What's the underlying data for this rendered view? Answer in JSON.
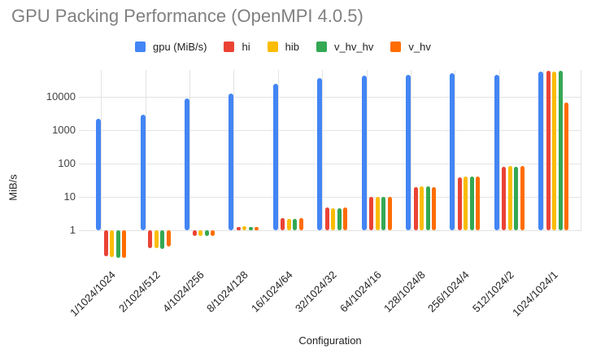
{
  "title": "GPU Packing Performance (OpenMPI 4.0.5)",
  "chart_data": {
    "type": "bar",
    "title": "GPU Packing Performance (OpenMPI 4.0.5)",
    "xlabel": "Configuration",
    "ylabel": "MiB/s",
    "scale": "log",
    "grid": true,
    "legend_position": "top",
    "y_ticks": [
      1,
      10,
      100,
      1000,
      10000
    ],
    "ylim": [
      0.1,
      61600
    ],
    "categories": [
      "1/1024/1024",
      "2/1024/512",
      "4/1024/256",
      "8/1024/128",
      "16/1024/64",
      "32/1024/32",
      "64/1024/16",
      "128/1024/8",
      "256/1024/4",
      "512/1024/2",
      "1024/1024/1"
    ],
    "series": [
      {
        "name": "gpu (MiB/s)",
        "color": "#4285F4",
        "values": [
          2200,
          2800,
          8500,
          12500,
          24000,
          35000,
          42000,
          45000,
          49000,
          45000,
          54000
        ]
      },
      {
        "name": "hi",
        "color": "#EA4335",
        "values": [
          0.17,
          0.3,
          0.68,
          1.3,
          2.3,
          4.8,
          10,
          20,
          38,
          78,
          58000
        ]
      },
      {
        "name": "hib",
        "color": "#FBBC04",
        "values": [
          0.16,
          0.29,
          0.67,
          1.35,
          2.2,
          4.7,
          10,
          21,
          41,
          84,
          55000
        ]
      },
      {
        "name": "v_hv_hv",
        "color": "#34A853",
        "values": [
          0.15,
          0.28,
          0.67,
          1.3,
          2.2,
          4.7,
          10,
          21,
          41,
          79,
          58000
        ]
      },
      {
        "name": "v_hv",
        "color": "#FF6D01",
        "values": [
          0.15,
          0.34,
          0.7,
          1.25,
          2.4,
          5.0,
          10,
          20,
          40,
          82,
          6500
        ]
      }
    ]
  }
}
